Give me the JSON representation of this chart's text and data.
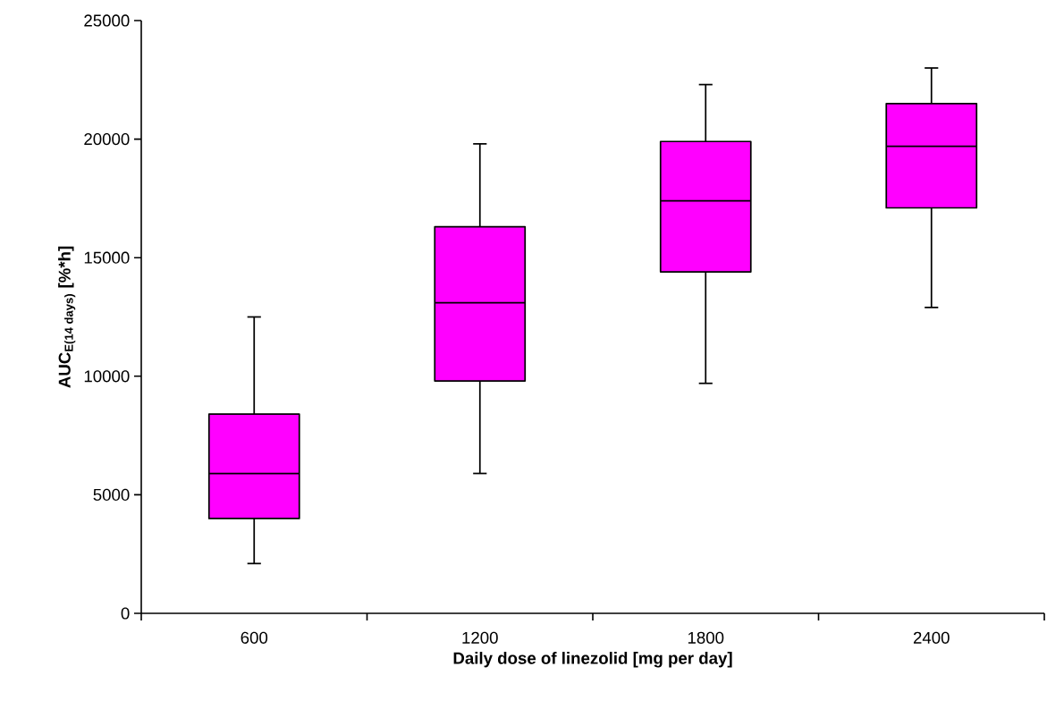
{
  "chart_data": {
    "type": "box",
    "xlabel": "Daily dose of linezolid [mg per day]",
    "ylabel": "\\textbf{AUC}_{\\textbf{E(14 days)}}\\textbf{ [\\%*h]}",
    "categories": [
      "600",
      "1200",
      "1800",
      "2400"
    ],
    "color": "#ff00ff",
    "boxes": [
      {
        "low": 2100,
        "q1": 4000,
        "median": 5900,
        "q3": 8400,
        "high": 12500
      },
      {
        "low": 5900,
        "q1": 9800,
        "median": 13100,
        "q3": 16300,
        "high": 19800
      },
      {
        "low": 9700,
        "q1": 14400,
        "median": 17400,
        "q3": 19900,
        "high": 22300
      },
      {
        "low": 12900,
        "q1": 17100,
        "median": 19700,
        "q3": 21500,
        "high": 23000
      }
    ],
    "ylim": [
      0,
      25000
    ],
    "yticks": [
      0,
      5000,
      10000,
      15000,
      20000,
      25000
    ]
  }
}
